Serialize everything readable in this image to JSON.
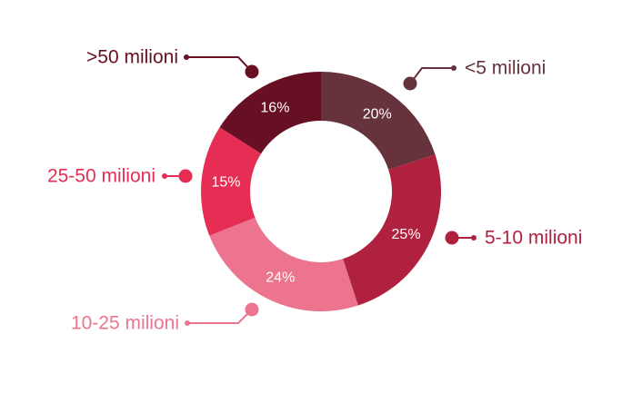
{
  "chart_data": {
    "type": "pie",
    "variant": "donut",
    "title": "",
    "legend": "none",
    "slices": [
      {
        "label": "<5 milioni",
        "value": 20,
        "value_label": "20%",
        "color": "#66323B"
      },
      {
        "label": "5-10 milioni",
        "value": 25,
        "value_label": "25%",
        "color": "#B0213F"
      },
      {
        "label": "10-25 milioni",
        "value": 24,
        "value_label": "24%",
        "color": "#EC748E"
      },
      {
        "label": "25-50 milioni",
        "value": 15,
        "value_label": "15%",
        "color": "#E62D54"
      },
      {
        "label": ">50 milioni",
        "value": 16,
        "value_label": "16%",
        "color": "#670F23"
      }
    ]
  }
}
